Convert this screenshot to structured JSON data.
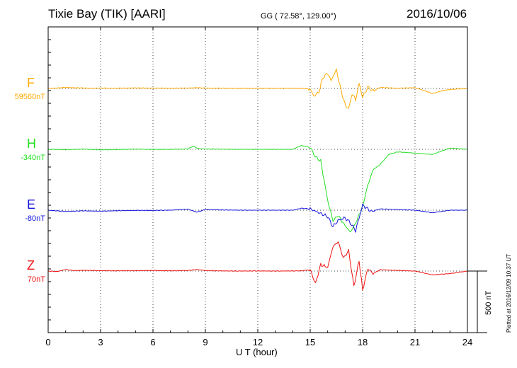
{
  "header": {
    "station": "Tixie Bay (TIK)  [AARI]",
    "coords": "GG ( 72.58°, 129.00°)",
    "date": "2016/10/06"
  },
  "footer": {
    "plotted": "Plotted at 2016/12/09 10:37 UT"
  },
  "chart_data": {
    "type": "line",
    "xlabel": "U T (hour)",
    "xlim": [
      0,
      24
    ],
    "xticks": [
      "0",
      "3",
      "6",
      "9",
      "12",
      "15",
      "18",
      "21",
      "24"
    ],
    "scale_bar_label": "500 nT",
    "scale_bar_nT": 500,
    "series": [
      {
        "name": "F",
        "baseline": "59560nT",
        "color": "#ffaa00",
        "x": [
          0,
          0.5,
          1,
          1.5,
          2,
          2.5,
          3,
          4,
          5,
          6,
          7,
          8,
          8.5,
          9,
          10,
          11,
          12,
          13,
          14,
          14.5,
          15,
          15.2,
          15.5,
          15.7,
          16,
          16.2,
          16.5,
          16.7,
          17,
          17.2,
          17.4,
          17.6,
          17.8,
          18,
          18.3,
          18.6,
          19,
          20,
          21,
          21.5,
          22,
          22.5,
          23,
          24
        ],
        "y": [
          0,
          3,
          8,
          5,
          4,
          2,
          3,
          2,
          4,
          3,
          2,
          3,
          6,
          3,
          2,
          1,
          2,
          1,
          2,
          1,
          -5,
          -60,
          -30,
          80,
          120,
          60,
          150,
          20,
          -130,
          -160,
          -40,
          -90,
          40,
          -70,
          10,
          -20,
          8,
          2,
          6,
          -15,
          -40,
          -20,
          -8,
          0
        ]
      },
      {
        "name": "H",
        "baseline": "-340nT",
        "color": "#22dd22",
        "x": [
          0,
          1,
          2,
          3,
          4,
          5,
          6,
          7,
          8,
          8.3,
          8.6,
          9,
          10,
          11,
          12,
          13,
          14,
          14.5,
          15,
          15.3,
          15.6,
          16,
          16.3,
          16.6,
          17,
          17.3,
          17.6,
          18,
          18.3,
          18.6,
          19,
          19.5,
          20,
          21,
          22,
          23,
          24
        ],
        "y": [
          0,
          -3,
          2,
          -4,
          -2,
          2,
          -1,
          0,
          3,
          25,
          5,
          3,
          1,
          0,
          0,
          0,
          0,
          30,
          15,
          -60,
          -90,
          -400,
          -560,
          -520,
          -600,
          -650,
          -580,
          -450,
          -280,
          -160,
          -120,
          -40,
          -20,
          -30,
          -40,
          10,
          0
        ]
      },
      {
        "name": "E",
        "baseline": "-80nT",
        "color": "#1515dd",
        "x": [
          0,
          1,
          2,
          3,
          4,
          5,
          6,
          7,
          8,
          8.5,
          9,
          10,
          11,
          12,
          13,
          14,
          14.5,
          15,
          15.5,
          16,
          16.3,
          16.6,
          17,
          17.3,
          17.6,
          18,
          18.5,
          19,
          20,
          21,
          22,
          23,
          24
        ],
        "y": [
          0,
          -10,
          -5,
          -8,
          -4,
          -2,
          -2,
          0,
          8,
          -15,
          5,
          2,
          0,
          0,
          0,
          0,
          15,
          10,
          -20,
          -50,
          -130,
          -80,
          -60,
          -100,
          -160,
          40,
          -10,
          10,
          5,
          0,
          -20,
          0,
          0
        ]
      },
      {
        "name": "Z",
        "baseline": "70nT",
        "color": "#ee1111",
        "x": [
          0,
          0.5,
          1,
          1.5,
          2,
          3,
          4,
          5,
          6,
          7,
          8,
          8.5,
          9,
          10,
          11,
          12,
          13,
          14,
          14.5,
          15,
          15.3,
          15.6,
          16,
          16.3,
          16.6,
          16.9,
          17.2,
          17.5,
          17.8,
          18,
          18.3,
          18.6,
          19,
          20,
          21,
          22,
          23,
          24
        ],
        "y": [
          0,
          -4,
          12,
          3,
          6,
          3,
          2,
          3,
          4,
          2,
          4,
          12,
          4,
          1,
          0,
          1,
          0,
          1,
          2,
          10,
          -100,
          50,
          30,
          190,
          230,
          100,
          160,
          -120,
          80,
          -150,
          20,
          -20,
          10,
          5,
          0,
          -30,
          -20,
          0
        ]
      }
    ]
  }
}
